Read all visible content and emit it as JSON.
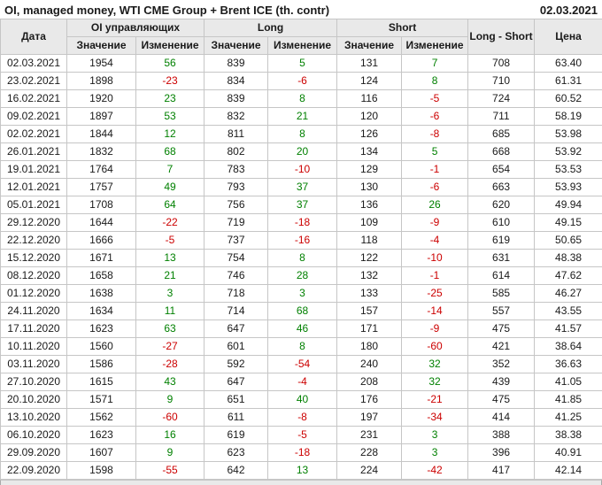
{
  "header": {
    "title": "OI, managed money, WTI CME Group + Brent ICE (th. contr)",
    "date": "02.03.2021"
  },
  "colors": {
    "positive": "#008000",
    "negative": "#cc0000",
    "header_bg": "#e9e9e9",
    "border": "#c6c6c6"
  },
  "chart_data": {
    "type": "table",
    "title": "OI, managed money, WTI CME Group + Brent ICE (th. contr)",
    "as_of_date": "02.03.2021",
    "group_headers": {
      "date": "Дата",
      "oi": "OI управляющих",
      "long": "Long",
      "short": "Short",
      "long_short": "Long - Short",
      "price": "Цена"
    },
    "sub_headers": {
      "value": "Значение",
      "change": "Изменение"
    },
    "column_keys": [
      "date",
      "oi-value",
      "oi-change",
      "long-value",
      "long-change",
      "short-value",
      "short-change",
      "long-short",
      "price"
    ],
    "change_column_indexes": [
      2,
      4,
      6
    ],
    "rows": [
      [
        "02.03.2021",
        "1954",
        "56",
        "839",
        "5",
        "131",
        "7",
        "708",
        "63.40"
      ],
      [
        "23.02.2021",
        "1898",
        "-23",
        "834",
        "-6",
        "124",
        "8",
        "710",
        "61.31"
      ],
      [
        "16.02.2021",
        "1920",
        "23",
        "839",
        "8",
        "116",
        "-5",
        "724",
        "60.52"
      ],
      [
        "09.02.2021",
        "1897",
        "53",
        "832",
        "21",
        "120",
        "-6",
        "711",
        "58.19"
      ],
      [
        "02.02.2021",
        "1844",
        "12",
        "811",
        "8",
        "126",
        "-8",
        "685",
        "53.98"
      ],
      [
        "26.01.2021",
        "1832",
        "68",
        "802",
        "20",
        "134",
        "5",
        "668",
        "53.92"
      ],
      [
        "19.01.2021",
        "1764",
        "7",
        "783",
        "-10",
        "129",
        "-1",
        "654",
        "53.53"
      ],
      [
        "12.01.2021",
        "1757",
        "49",
        "793",
        "37",
        "130",
        "-6",
        "663",
        "53.93"
      ],
      [
        "05.01.2021",
        "1708",
        "64",
        "756",
        "37",
        "136",
        "26",
        "620",
        "49.94"
      ],
      [
        "29.12.2020",
        "1644",
        "-22",
        "719",
        "-18",
        "109",
        "-9",
        "610",
        "49.15"
      ],
      [
        "22.12.2020",
        "1666",
        "-5",
        "737",
        "-16",
        "118",
        "-4",
        "619",
        "50.65"
      ],
      [
        "15.12.2020",
        "1671",
        "13",
        "754",
        "8",
        "122",
        "-10",
        "631",
        "48.38"
      ],
      [
        "08.12.2020",
        "1658",
        "21",
        "746",
        "28",
        "132",
        "-1",
        "614",
        "47.62"
      ],
      [
        "01.12.2020",
        "1638",
        "3",
        "718",
        "3",
        "133",
        "-25",
        "585",
        "46.27"
      ],
      [
        "24.11.2020",
        "1634",
        "11",
        "714",
        "68",
        "157",
        "-14",
        "557",
        "43.55"
      ],
      [
        "17.11.2020",
        "1623",
        "63",
        "647",
        "46",
        "171",
        "-9",
        "475",
        "41.57"
      ],
      [
        "10.11.2020",
        "1560",
        "-27",
        "601",
        "8",
        "180",
        "-60",
        "421",
        "38.64"
      ],
      [
        "03.11.2020",
        "1586",
        "-28",
        "592",
        "-54",
        "240",
        "32",
        "352",
        "36.63"
      ],
      [
        "27.10.2020",
        "1615",
        "43",
        "647",
        "-4",
        "208",
        "32",
        "439",
        "41.05"
      ],
      [
        "20.10.2020",
        "1571",
        "9",
        "651",
        "40",
        "176",
        "-21",
        "475",
        "41.85"
      ],
      [
        "13.10.2020",
        "1562",
        "-60",
        "611",
        "-8",
        "197",
        "-34",
        "414",
        "41.25"
      ],
      [
        "06.10.2020",
        "1623",
        "16",
        "619",
        "-5",
        "231",
        "3",
        "388",
        "38.38"
      ],
      [
        "29.09.2020",
        "1607",
        "9",
        "623",
        "-18",
        "228",
        "3",
        "396",
        "40.91"
      ],
      [
        "22.09.2020",
        "1598",
        "-55",
        "642",
        "13",
        "224",
        "-42",
        "417",
        "42.14"
      ]
    ]
  }
}
